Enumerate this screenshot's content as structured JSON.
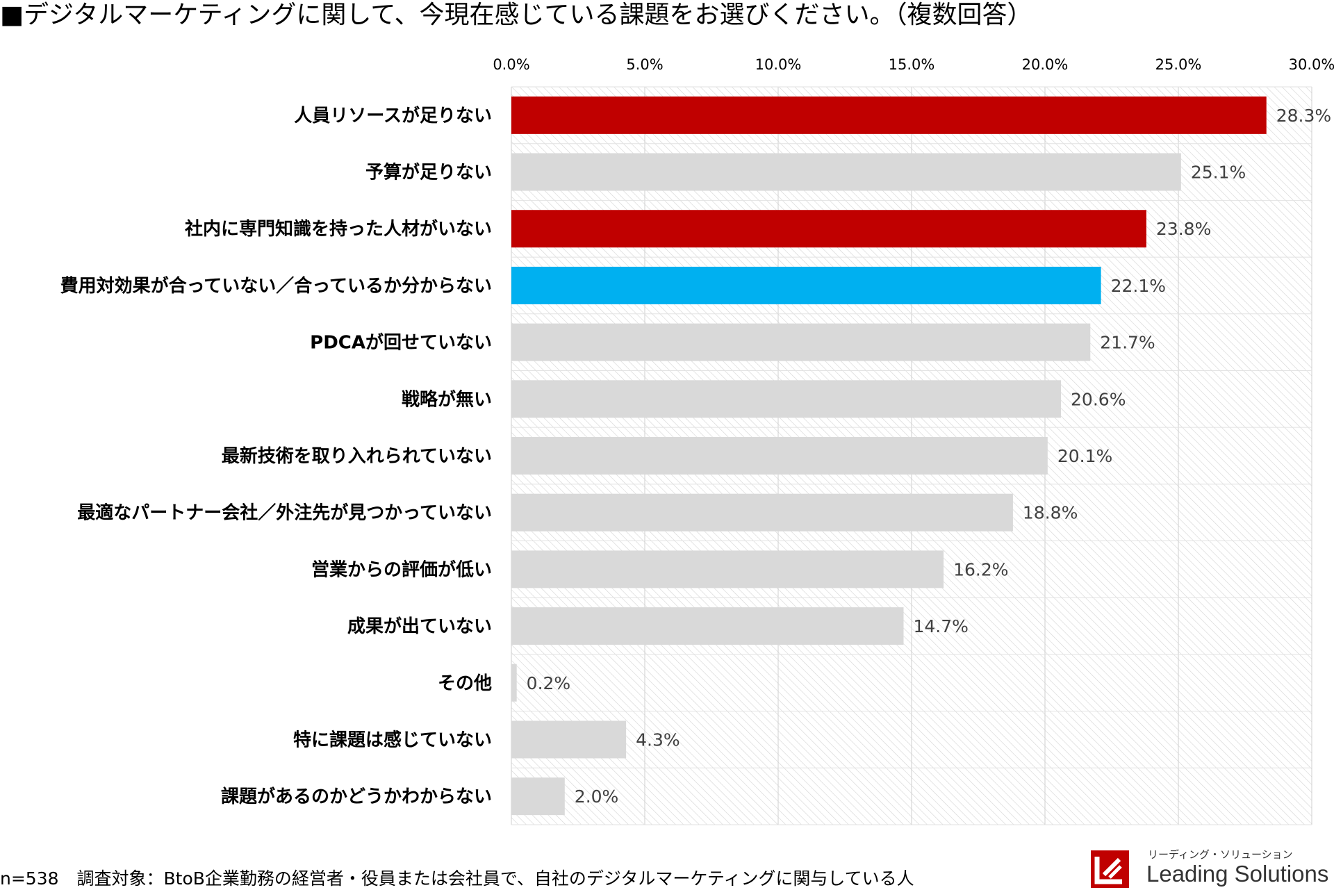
{
  "chart_data": {
    "type": "bar",
    "orientation": "horizontal",
    "title": "■デジタルマーケティングに関して、今現在感じている課題をお選びください。（複数回答）",
    "xlim": [
      0,
      30
    ],
    "x_ticks": [
      "0.0%",
      "5.0%",
      "10.0%",
      "15.0%",
      "20.0%",
      "25.0%",
      "30.0%"
    ],
    "grid": "vertical",
    "categories": [
      "人員リソースが足りない",
      "予算が足りない",
      "社内に専門知識を持った人材がいない",
      "費用対効果が合っていない／合っているか分からない",
      "PDCAが回せていない",
      "戦略が無い",
      "最新技術を取り入れられていない",
      "最適なパートナー会社／外注先が見つかっていない",
      "営業からの評価が低い",
      "成果が出ていない",
      "その他",
      "特に課題は感じていない",
      "課題があるのかどうかわからない"
    ],
    "values": [
      28.3,
      25.1,
      23.8,
      22.1,
      21.7,
      20.6,
      20.1,
      18.8,
      16.2,
      14.7,
      0.2,
      4.3,
      2.0
    ],
    "value_labels": [
      "28.3%",
      "25.1%",
      "23.8%",
      "22.1%",
      "21.7%",
      "20.6%",
      "20.1%",
      "18.8%",
      "16.2%",
      "14.7%",
      "0.2%",
      "4.3%",
      "2.0%"
    ],
    "bar_colors": [
      "#c00000",
      "#d9d9d9",
      "#c00000",
      "#00b0f0",
      "#d9d9d9",
      "#d9d9d9",
      "#d9d9d9",
      "#d9d9d9",
      "#d9d9d9",
      "#d9d9d9",
      "#d9d9d9",
      "#d9d9d9",
      "#d9d9d9"
    ]
  },
  "footnote": {
    "n": "n=538",
    "target": "調査対象：BtoB企業勤務の経営者・役員または会社員で、自社のデジタルマーケティングに関与している人"
  },
  "logo": {
    "subtitle": "リーディング・ソリューション",
    "name": "Leading Solutions",
    "icon": "leading-solutions-logo-icon"
  }
}
